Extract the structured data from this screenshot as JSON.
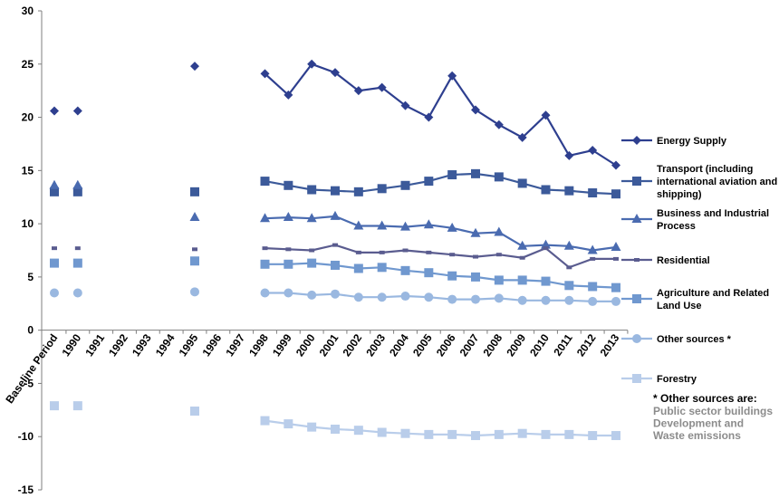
{
  "chart_data": {
    "type": "line",
    "title": "",
    "xlabel": "",
    "ylabel": "",
    "ylim": [
      -15,
      30
    ],
    "yticks": [
      "-15",
      "-10",
      "-5",
      "0",
      "5",
      "10",
      "15",
      "20",
      "25",
      "30"
    ],
    "categories": [
      "Baseline Period",
      "1990",
      "1991",
      "1992",
      "1993",
      "1994",
      "1995",
      "1996",
      "1997",
      "1998",
      "1999",
      "2000",
      "2001",
      "2002",
      "2003",
      "2004",
      "2005",
      "2006",
      "2007",
      "2008",
      "2009",
      "2010",
      "2011",
      "2012",
      "2013"
    ],
    "grid": false,
    "legend_position": "right",
    "series": [
      {
        "name": "Energy Supply",
        "color": "#2e3f8f",
        "marker": "diamond",
        "values": [
          20.6,
          20.6,
          null,
          null,
          null,
          null,
          24.8,
          null,
          null,
          24.1,
          22.1,
          25.0,
          24.2,
          22.5,
          22.8,
          21.1,
          20.0,
          23.9,
          20.7,
          19.3,
          18.1,
          20.2,
          16.4,
          16.9,
          15.5
        ]
      },
      {
        "name": "Transport (including international aviation and shipping)",
        "color": "#3c5a9a",
        "marker": "square",
        "values": [
          13.0,
          13.0,
          null,
          null,
          null,
          null,
          13.0,
          null,
          null,
          14.0,
          13.6,
          13.2,
          13.1,
          13.0,
          13.3,
          13.6,
          14.0,
          14.6,
          14.7,
          14.4,
          13.8,
          13.2,
          13.1,
          12.9,
          12.8
        ]
      },
      {
        "name": "Business and Industrial Process",
        "color": "#4a6bb0",
        "marker": "triangle",
        "values": [
          13.6,
          13.6,
          null,
          null,
          null,
          null,
          10.6,
          null,
          null,
          10.5,
          10.6,
          10.5,
          10.7,
          9.8,
          9.8,
          9.7,
          9.9,
          9.6,
          9.1,
          9.2,
          7.9,
          8.0,
          7.9,
          7.5,
          7.8
        ]
      },
      {
        "name": "Residential",
        "color": "#5a5c8f",
        "marker": "dash",
        "values": [
          7.7,
          7.7,
          null,
          null,
          null,
          null,
          7.6,
          null,
          null,
          7.7,
          7.6,
          7.5,
          8.0,
          7.3,
          7.3,
          7.5,
          7.3,
          7.1,
          6.9,
          7.1,
          6.8,
          7.7,
          5.9,
          6.7,
          6.7
        ]
      },
      {
        "name": "Agriculture and Related Land Use",
        "color": "#7098cf",
        "marker": "square",
        "values": [
          6.3,
          6.3,
          null,
          null,
          null,
          null,
          6.5,
          null,
          null,
          6.2,
          6.2,
          6.3,
          6.1,
          5.8,
          5.9,
          5.6,
          5.4,
          5.1,
          5.0,
          4.7,
          4.7,
          4.6,
          4.2,
          4.1,
          4.0
        ]
      },
      {
        "name": "Other sources *",
        "color": "#9ab8e0",
        "marker": "circle",
        "values": [
          3.5,
          3.5,
          null,
          null,
          null,
          null,
          3.6,
          null,
          null,
          3.5,
          3.5,
          3.3,
          3.4,
          3.1,
          3.1,
          3.2,
          3.1,
          2.9,
          2.9,
          3.0,
          2.8,
          2.8,
          2.8,
          2.7,
          2.7
        ]
      },
      {
        "name": "Forestry",
        "color": "#b9cdea",
        "marker": "square",
        "values": [
          -7.1,
          -7.1,
          null,
          null,
          null,
          null,
          -7.6,
          null,
          null,
          -8.5,
          -8.8,
          -9.1,
          -9.3,
          -9.4,
          -9.6,
          -9.7,
          -9.8,
          -9.8,
          -9.9,
          -9.8,
          -9.7,
          -9.8,
          -9.8,
          -9.9,
          -9.9
        ]
      }
    ],
    "legend_lines": {
      "Energy Supply": [
        "Energy Supply"
      ],
      "Transport (including international aviation and shipping)": [
        "Transport (including",
        "international aviation and",
        "shipping)"
      ],
      "Business and Industrial Process": [
        "Business and Industrial",
        "Process"
      ],
      "Residential": [
        "Residential"
      ],
      "Agriculture and Related Land Use": [
        "Agriculture and Related",
        "Land Use"
      ],
      "Other sources *": [
        "Other sources *"
      ],
      "Forestry": [
        "Forestry"
      ]
    },
    "note": {
      "heading": "* Other sources are:",
      "lines": [
        "Public sector buildings",
        "Development and",
        "Waste emissions"
      ]
    }
  }
}
